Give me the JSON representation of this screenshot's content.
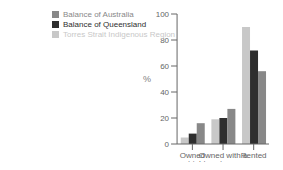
{
  "chart_data": {
    "type": "bar",
    "categories": [
      "Owned outright",
      "Owned with a mortgage",
      "Rented"
    ],
    "series": [
      {
        "name": "Torres Strait Indigenous Region",
        "color": "#c8c8c8",
        "values": [
          5,
          19,
          90
        ]
      },
      {
        "name": "Balance of Queensland",
        "color": "#2e2e2e",
        "values": [
          8,
          20,
          72
        ]
      },
      {
        "name": "Balance of Australia",
        "color": "#888888",
        "values": [
          16,
          27,
          56
        ]
      }
    ],
    "ylabel": "%",
    "ylim": [
      0,
      100
    ],
    "yticks": [
      0,
      20,
      40,
      60,
      80,
      100
    ],
    "legend": "upper left",
    "grid": false
  }
}
